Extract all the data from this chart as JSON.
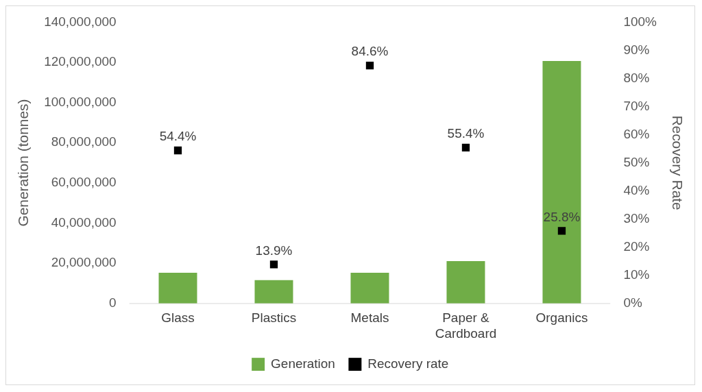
{
  "chart_data": {
    "type": "bar",
    "ylabel": "Generation (tonnes)",
    "y2label": "Recovery Rate",
    "categories": [
      "Glass",
      "Plastics",
      "Metals",
      "Paper & Cardboard",
      "Organics"
    ],
    "series": [
      {
        "name": "Generation",
        "type": "bar",
        "color": "#70ad47",
        "values": [
          15300000,
          11600000,
          15300000,
          21100000,
          120700000
        ]
      },
      {
        "name": "Recovery rate",
        "type": "scatter",
        "axis": "y2",
        "marker": "square",
        "color": "#000000",
        "values": [
          54.4,
          13.9,
          84.6,
          55.4,
          25.8
        ],
        "value_labels": [
          "54.4%",
          "13.9%",
          "84.6%",
          "55.4%",
          "25.8%"
        ]
      }
    ],
    "ylim": [
      0,
      140000000
    ],
    "yticks": [
      {
        "value": 0,
        "label": "0"
      },
      {
        "value": 20000000,
        "label": "20,000,000"
      },
      {
        "value": 40000000,
        "label": "40,000,000"
      },
      {
        "value": 60000000,
        "label": "60,000,000"
      },
      {
        "value": 80000000,
        "label": "80,000,000"
      },
      {
        "value": 100000000,
        "label": "100,000,000"
      },
      {
        "value": 120000000,
        "label": "120,000,000"
      },
      {
        "value": 140000000,
        "label": "140,000,000"
      }
    ],
    "y2lim": [
      0,
      100
    ],
    "y2ticks": [
      {
        "value": 0,
        "label": "0%"
      },
      {
        "value": 10,
        "label": "10%"
      },
      {
        "value": 20,
        "label": "20%"
      },
      {
        "value": 30,
        "label": "30%"
      },
      {
        "value": 40,
        "label": "40%"
      },
      {
        "value": 50,
        "label": "50%"
      },
      {
        "value": 60,
        "label": "60%"
      },
      {
        "value": 70,
        "label": "70%"
      },
      {
        "value": 80,
        "label": "80%"
      },
      {
        "value": 90,
        "label": "90%"
      },
      {
        "value": 100,
        "label": "100%"
      }
    ],
    "legend": "bottom",
    "grid": false
  }
}
